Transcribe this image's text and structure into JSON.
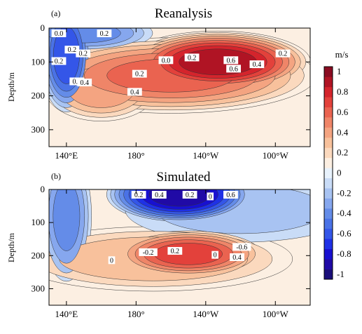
{
  "colors": {
    "levels": [
      -1.0,
      -0.9,
      -0.8,
      -0.7,
      -0.6,
      -0.5,
      -0.4,
      -0.3,
      -0.2,
      -0.1,
      0.0,
      0.1,
      0.2,
      0.3,
      0.4,
      0.5,
      0.6,
      0.7,
      0.8,
      0.9,
      1.0
    ],
    "fills": [
      "#1a0e7a",
      "#200aa6",
      "#1810d0",
      "#1f31e6",
      "#3456e8",
      "#4a72e6",
      "#648ce8",
      "#86a7ee",
      "#a8c3f2",
      "#c9dcf7",
      "#e8f2fc",
      "#fcefe2",
      "#fbd9be",
      "#f8c19c",
      "#f4a481",
      "#ef8568",
      "#ea6350",
      "#e3413b",
      "#d4242c",
      "#b01424",
      "#8a0c22"
    ]
  },
  "colorbar": {
    "unit": "m/s",
    "ticks": [
      "1",
      "0.8",
      "0.6",
      "0.4",
      "0.2",
      "0",
      "-0.2",
      "-0.4",
      "-0.6",
      "-0.8",
      "-1"
    ],
    "tick_values": [
      1.0,
      0.8,
      0.6,
      0.4,
      0.2,
      0.0,
      -0.2,
      -0.4,
      -0.6,
      -0.8,
      -1.0
    ]
  },
  "chart_data": [
    {
      "type": "heatmap",
      "panel_label": "(a)",
      "title": "Reanalysis",
      "ylabel": "Depth/m",
      "x_ticks": [
        "140°E",
        "180°",
        "140°W",
        "100°W"
      ],
      "x_tick_values": [
        140,
        180,
        220,
        260
      ],
      "y_ticks": [
        "0",
        "100",
        "200",
        "300"
      ],
      "y_tick_values": [
        0,
        100,
        200,
        300
      ],
      "xlim": [
        130,
        280
      ],
      "ylim": [
        350,
        0
      ],
      "contour_labels": [
        "0.2",
        "0.0",
        "0.4",
        "0.2",
        "0.6",
        "0.8",
        "0.6",
        "0.2",
        "0.4",
        "0.4",
        "0.2",
        "0.2",
        "0.2",
        "0.0",
        "0.2"
      ],
      "features": [
        {
          "lon": 227,
          "depth": 100,
          "amplitude": 0.95,
          "lon_width": 28,
          "depth_width": 48
        },
        {
          "lon": 200,
          "depth": 140,
          "amplitude": 0.6,
          "lon_width": 45,
          "depth_width": 60
        },
        {
          "lon": 160,
          "depth": 175,
          "amplitude": 0.45,
          "lon_width": 18,
          "depth_width": 55
        },
        {
          "lon": 140,
          "depth": 80,
          "amplitude": -0.65,
          "lon_width": 8,
          "depth_width": 90
        },
        {
          "lon": 150,
          "depth": 15,
          "amplitude": -0.4,
          "lon_width": 22,
          "depth_width": 30
        }
      ]
    },
    {
      "type": "heatmap",
      "panel_label": "(b)",
      "title": "Simulated",
      "ylabel": "Depth/m",
      "x_ticks": [
        "140°E",
        "180°",
        "140°W",
        "100°W"
      ],
      "x_tick_values": [
        140,
        180,
        220,
        260
      ],
      "y_ticks": [
        "0",
        "100",
        "200",
        "300"
      ],
      "y_tick_values": [
        0,
        100,
        200,
        300
      ],
      "xlim": [
        130,
        280
      ],
      "ylim": [
        350,
        0
      ],
      "contour_labels": [
        "-0.6",
        "-0.2",
        "0",
        "0.2",
        "0.4",
        "0",
        "0.6",
        "0.2",
        "0",
        "0.4",
        "0.2"
      ],
      "features": [
        {
          "lon": 210,
          "depth": 195,
          "amplitude": 0.72,
          "lon_width": 24,
          "depth_width": 40
        },
        {
          "lon": 190,
          "depth": 210,
          "amplitude": 0.35,
          "lon_width": 45,
          "depth_width": 55
        },
        {
          "lon": 205,
          "depth": 15,
          "amplitude": -0.95,
          "lon_width": 22,
          "depth_width": 45
        },
        {
          "lon": 140,
          "depth": 80,
          "amplitude": -0.4,
          "lon_width": 8,
          "depth_width": 110
        },
        {
          "lon": 240,
          "depth": 60,
          "amplitude": -0.2,
          "lon_width": 40,
          "depth_width": 60
        }
      ]
    }
  ]
}
